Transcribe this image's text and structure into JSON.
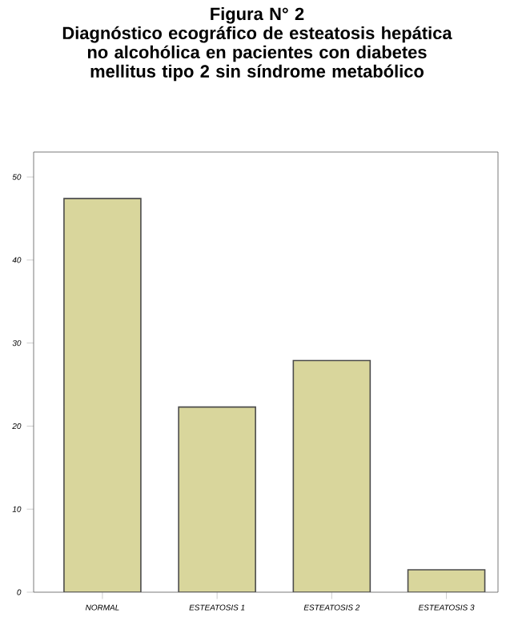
{
  "chart_data": {
    "type": "bar",
    "title": "Figura N° 2\nDiagnóstico ecográfico de esteatosis hepática no alcohólica en pacientes con diabetes mellitus tipo 2 sin síndrome metabólico",
    "categories": [
      "NORMAL",
      "ESTEATOSIS 1",
      "ESTEATOSIS 2",
      "ESTEATOSIS 3"
    ],
    "values": [
      47.4,
      22.3,
      27.9,
      2.7
    ],
    "color": "#d9d69c",
    "ylim": [
      0,
      53
    ],
    "yticks": [
      0,
      10,
      20,
      30,
      40,
      50
    ],
    "grid": false
  }
}
